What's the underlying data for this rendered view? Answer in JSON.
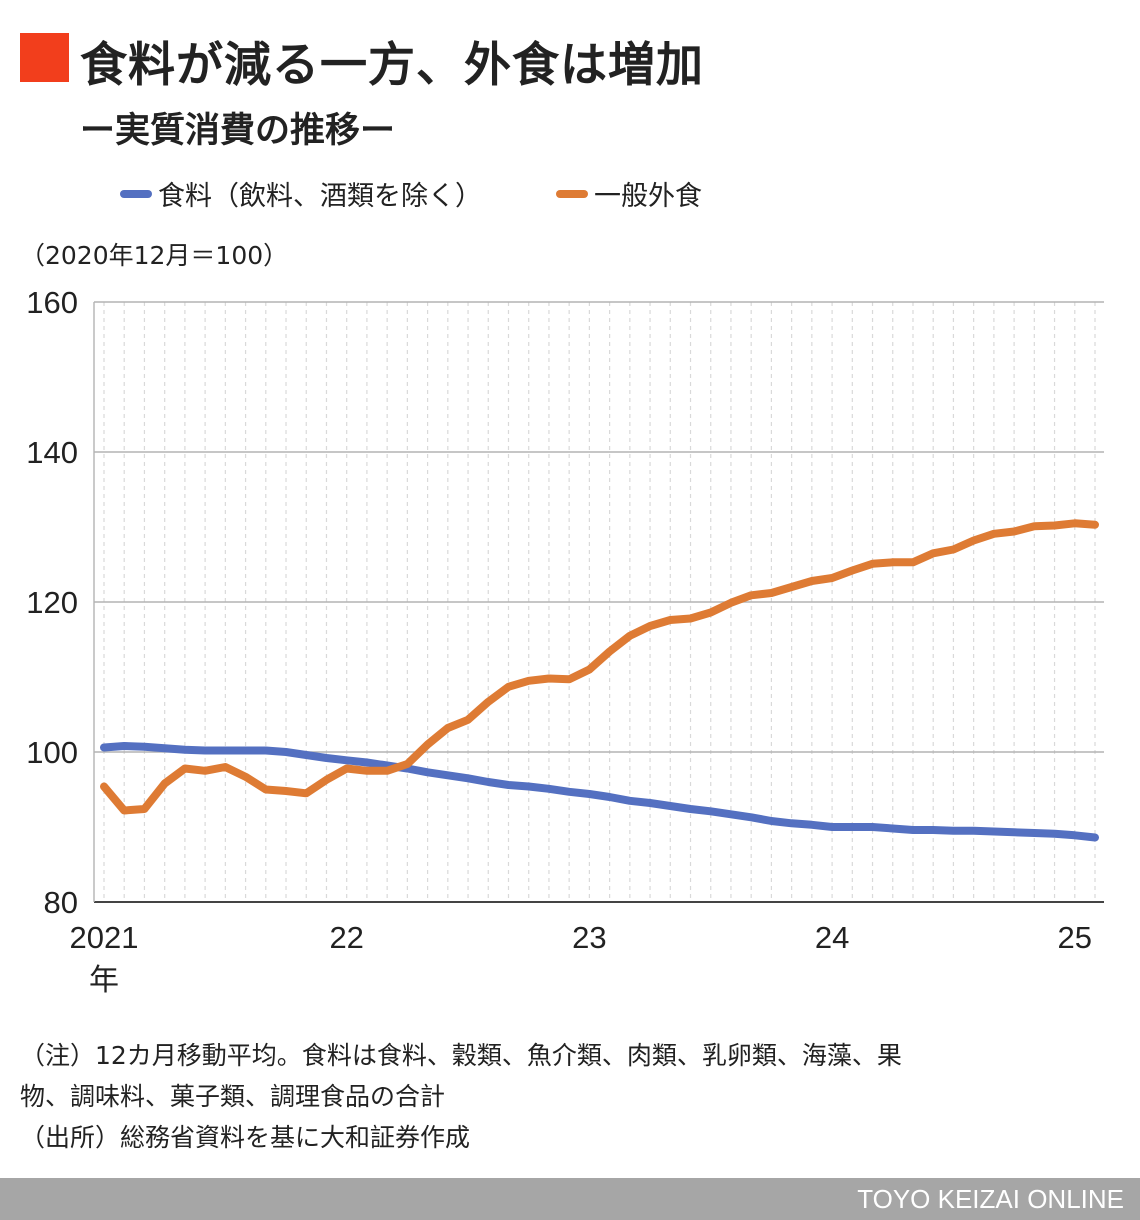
{
  "header": {
    "title": "食料が減る一方、外食は増加",
    "subtitle": "ー実質消費の推移ー",
    "accent_color": "#f23e1c"
  },
  "unit_note": "（2020年12月＝100）",
  "notes": {
    "line1": "（注）12カ月移動平均。食料は食料、穀類、魚介類、肉類、乳卵類、海藻、果",
    "line2": "物、調味料、菓子類、調理食品の合計",
    "line3": "（出所）総務省資料を基に大和証券作成"
  },
  "footer": {
    "brand": "TOYO KEIZAI ONLINE"
  },
  "chart_data": {
    "type": "line",
    "title": "食料が減る一方、外食は増加",
    "subtitle": "ー実質消費の推移ー",
    "xlabel": "",
    "ylabel": "（2020年12月＝100）",
    "ylim": [
      80,
      160
    ],
    "yticks": [
      80,
      100,
      120,
      140,
      160
    ],
    "xticks": [
      {
        "index": 0,
        "label": "2021",
        "sublabel": "年"
      },
      {
        "index": 12,
        "label": "22"
      },
      {
        "index": 24,
        "label": "23"
      },
      {
        "index": 36,
        "label": "24"
      },
      {
        "index": 48,
        "label": "25"
      }
    ],
    "x": [
      "2021-01",
      "2021-02",
      "2021-03",
      "2021-04",
      "2021-05",
      "2021-06",
      "2021-07",
      "2021-08",
      "2021-09",
      "2021-10",
      "2021-11",
      "2021-12",
      "2022-01",
      "2022-02",
      "2022-03",
      "2022-04",
      "2022-05",
      "2022-06",
      "2022-07",
      "2022-08",
      "2022-09",
      "2022-10",
      "2022-11",
      "2022-12",
      "2023-01",
      "2023-02",
      "2023-03",
      "2023-04",
      "2023-05",
      "2023-06",
      "2023-07",
      "2023-08",
      "2023-09",
      "2023-10",
      "2023-11",
      "2023-12",
      "2024-01",
      "2024-02",
      "2024-03",
      "2024-04",
      "2024-05",
      "2024-06",
      "2024-07",
      "2024-08",
      "2024-09",
      "2024-10",
      "2024-11",
      "2024-12",
      "2025-01",
      "2025-02"
    ],
    "grid": true,
    "legend_position": "top",
    "series": [
      {
        "name": "食料（飲料、酒類を除く）",
        "color": "#5470c1",
        "values": [
          100.6,
          100.8,
          100.7,
          100.5,
          100.3,
          100.2,
          100.2,
          100.2,
          100.2,
          100.0,
          99.6,
          99.2,
          98.9,
          98.6,
          98.2,
          97.8,
          97.3,
          96.9,
          96.5,
          96.0,
          95.6,
          95.4,
          95.1,
          94.7,
          94.4,
          94.0,
          93.5,
          93.2,
          92.8,
          92.4,
          92.1,
          91.7,
          91.3,
          90.8,
          90.5,
          90.3,
          90.0,
          90.0,
          90.0,
          89.8,
          89.6,
          89.6,
          89.5,
          89.5,
          89.4,
          89.3,
          89.2,
          89.1,
          88.9,
          88.6
        ]
      },
      {
        "name": "一般外食",
        "color": "#de7b34",
        "values": [
          95.4,
          92.2,
          92.4,
          95.8,
          97.8,
          97.5,
          98.0,
          96.7,
          95.0,
          94.8,
          94.5,
          96.3,
          97.8,
          97.5,
          97.5,
          98.4,
          101.0,
          103.2,
          104.3,
          106.7,
          108.7,
          109.5,
          109.8,
          109.7,
          111.0,
          113.4,
          115.5,
          116.8,
          117.6,
          117.8,
          118.6,
          119.9,
          120.9,
          121.2,
          122.0,
          122.8,
          123.2,
          124.2,
          125.1,
          125.3,
          125.3,
          126.5,
          127.0,
          128.2,
          129.1,
          129.4,
          130.1,
          130.2,
          130.5,
          130.3
        ]
      }
    ]
  }
}
